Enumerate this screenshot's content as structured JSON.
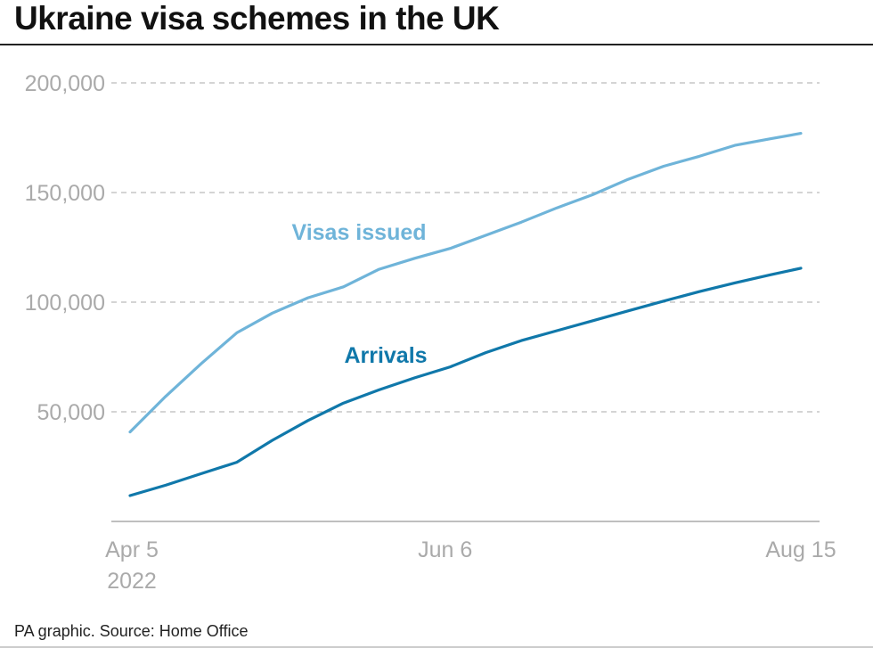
{
  "title": "Ukraine visa schemes in the UK",
  "source": "PA graphic. Source: Home Office",
  "colors": {
    "visas": "#6fb4d9",
    "arrivals": "#1078aa",
    "grid": "#bbbbbb",
    "tick_text": "#aaaaaa"
  },
  "chart_data": {
    "type": "line",
    "title": "Ukraine visa schemes in the UK",
    "xlabel": "",
    "ylabel": "",
    "grid": true,
    "ylim": [
      0,
      200000
    ],
    "xlim": [
      "2022-04-05",
      "2022-08-15"
    ],
    "y_ticks": [
      {
        "value": 50000,
        "label": "50,000"
      },
      {
        "value": 100000,
        "label": "100,000"
      },
      {
        "value": 150000,
        "label": "150,000"
      },
      {
        "value": 200000,
        "label": "200,000"
      }
    ],
    "x_ticks": [
      {
        "date": "2022-04-05",
        "label": "Apr 5",
        "sublabel": "2022"
      },
      {
        "date": "2022-06-06",
        "label": "Jun 6",
        "sublabel": ""
      },
      {
        "date": "2022-08-15",
        "label": "Aug 15",
        "sublabel": ""
      }
    ],
    "series": [
      {
        "name": "Visas issued",
        "color": "#6fb4d9",
        "points": [
          {
            "x": "2022-04-05",
            "y": 40800
          },
          {
            "x": "2022-04-12",
            "y": 57000
          },
          {
            "x": "2022-04-19",
            "y": 72000
          },
          {
            "x": "2022-04-26",
            "y": 86000
          },
          {
            "x": "2022-05-03",
            "y": 95000
          },
          {
            "x": "2022-05-10",
            "y": 102000
          },
          {
            "x": "2022-05-17",
            "y": 107000
          },
          {
            "x": "2022-05-24",
            "y": 115000
          },
          {
            "x": "2022-05-31",
            "y": 120000
          },
          {
            "x": "2022-06-07",
            "y": 124500
          },
          {
            "x": "2022-06-14",
            "y": 130500
          },
          {
            "x": "2022-06-21",
            "y": 136500
          },
          {
            "x": "2022-06-28",
            "y": 143000
          },
          {
            "x": "2022-07-05",
            "y": 149000
          },
          {
            "x": "2022-07-12",
            "y": 156000
          },
          {
            "x": "2022-07-19",
            "y": 162000
          },
          {
            "x": "2022-07-26",
            "y": 166500
          },
          {
            "x": "2022-08-02",
            "y": 171500
          },
          {
            "x": "2022-08-09",
            "y": 174500
          },
          {
            "x": "2022-08-15",
            "y": 177000
          }
        ]
      },
      {
        "name": "Arrivals",
        "color": "#1078aa",
        "points": [
          {
            "x": "2022-04-05",
            "y": 11800
          },
          {
            "x": "2022-04-12",
            "y": 16500
          },
          {
            "x": "2022-04-19",
            "y": 21800
          },
          {
            "x": "2022-04-26",
            "y": 27000
          },
          {
            "x": "2022-05-03",
            "y": 37000
          },
          {
            "x": "2022-05-10",
            "y": 46000
          },
          {
            "x": "2022-05-17",
            "y": 54000
          },
          {
            "x": "2022-05-24",
            "y": 60000
          },
          {
            "x": "2022-05-31",
            "y": 65500
          },
          {
            "x": "2022-06-07",
            "y": 70500
          },
          {
            "x": "2022-06-14",
            "y": 77000
          },
          {
            "x": "2022-06-21",
            "y": 82500
          },
          {
            "x": "2022-06-28",
            "y": 87000
          },
          {
            "x": "2022-07-05",
            "y": 91500
          },
          {
            "x": "2022-07-12",
            "y": 96000
          },
          {
            "x": "2022-07-19",
            "y": 100500
          },
          {
            "x": "2022-07-26",
            "y": 104800
          },
          {
            "x": "2022-08-02",
            "y": 108800
          },
          {
            "x": "2022-08-09",
            "y": 112500
          },
          {
            "x": "2022-08-15",
            "y": 115500
          }
        ]
      }
    ]
  }
}
